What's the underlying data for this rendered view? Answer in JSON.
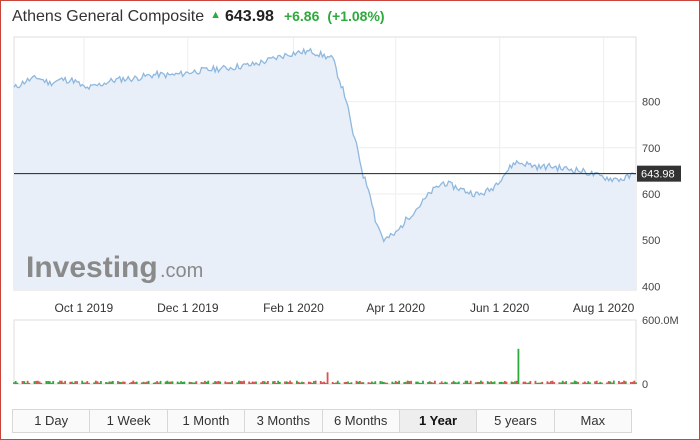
{
  "header": {
    "title": "Athens General Composite",
    "last": "643.98",
    "change": "+6.86",
    "change_pct": "(+1.08%)",
    "up_color": "#2eaa3c",
    "arrow_icon": "up-triangle-icon"
  },
  "watermark": {
    "main": "Investing",
    "sub": ".com"
  },
  "tabs": [
    {
      "label": "1 Day",
      "active": false
    },
    {
      "label": "1 Week",
      "active": false
    },
    {
      "label": "1 Month",
      "active": false
    },
    {
      "label": "3 Months",
      "active": false
    },
    {
      "label": "6 Months",
      "active": false
    },
    {
      "label": "1 Year",
      "active": true
    },
    {
      "label": "5 years",
      "active": false
    },
    {
      "label": "Max",
      "active": false
    }
  ],
  "chart_data": [
    {
      "type": "area",
      "title": "",
      "xlabel": "",
      "ylabel": "",
      "x_ticks": [
        "Oct 1 2019",
        "Dec 1 2019",
        "Feb 1 2020",
        "Apr 1 2020",
        "Jun 1 2020",
        "Aug 1 2020"
      ],
      "y_ticks": [
        400,
        500,
        600,
        700,
        800
      ],
      "ylim": [
        392,
        940
      ],
      "xlim": [
        "2019-08-21",
        "2020-08-20"
      ],
      "last_value": 643.98,
      "last_label": "643.98",
      "grid": true,
      "line_color": "#8fb8de",
      "fill_color": "#e8eff8",
      "series": [
        {
          "x": [
            "2019-08-21",
            "2019-08-28",
            "2019-09-04",
            "2019-09-11",
            "2019-09-18",
            "2019-09-25",
            "2019-10-02",
            "2019-10-09",
            "2019-10-16",
            "2019-10-23",
            "2019-10-30",
            "2019-11-06",
            "2019-11-13",
            "2019-11-20",
            "2019-11-27",
            "2019-12-04",
            "2019-12-11",
            "2019-12-18",
            "2019-12-25",
            "2020-01-01",
            "2020-01-08",
            "2020-01-15",
            "2020-01-22",
            "2020-01-29",
            "2020-02-05",
            "2020-02-12",
            "2020-02-19",
            "2020-02-24",
            "2020-02-27",
            "2020-03-03",
            "2020-03-06",
            "2020-03-10",
            "2020-03-13",
            "2020-03-17",
            "2020-03-20",
            "2020-03-25",
            "2020-04-01",
            "2020-04-08",
            "2020-04-15",
            "2020-04-22",
            "2020-04-29",
            "2020-05-06",
            "2020-05-13",
            "2020-05-20",
            "2020-05-27",
            "2020-06-03",
            "2020-06-10",
            "2020-06-17",
            "2020-06-24",
            "2020-07-01",
            "2020-07-08",
            "2020-07-15",
            "2020-07-22",
            "2020-07-29",
            "2020-08-05",
            "2020-08-12",
            "2020-08-20"
          ],
          "y": [
            829,
            845,
            852,
            840,
            848,
            846,
            828,
            835,
            844,
            849,
            850,
            855,
            859,
            857,
            860,
            865,
            868,
            871,
            873,
            877,
            880,
            887,
            895,
            903,
            907,
            909,
            899,
            893,
            858,
            804,
            745,
            690,
            640,
            602,
            545,
            500,
            514,
            548,
            575,
            605,
            625,
            615,
            605,
            598,
            610,
            640,
            669,
            665,
            658,
            660,
            655,
            653,
            647,
            639,
            633,
            632,
            643.98
          ]
        }
      ]
    },
    {
      "type": "bar",
      "title": "",
      "ylabel": "",
      "y_ticks": [
        0,
        600
      ],
      "y_tick_labels": [
        "0",
        "600.0M"
      ],
      "ylim": [
        0,
        600
      ],
      "unit": "M",
      "colors": {
        "up": "#2eaa3c",
        "down": "#d9534f"
      },
      "spikes": [
        {
          "date": "2020-02-21",
          "value": 110
        },
        {
          "date": "2020-06-12",
          "value": 330
        }
      ]
    }
  ]
}
